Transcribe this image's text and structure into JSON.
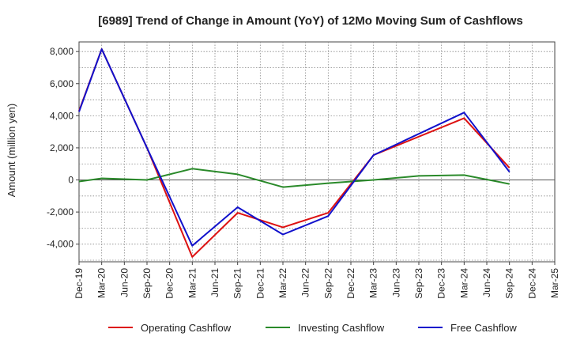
{
  "chart_data": {
    "type": "line",
    "title": "[6989]  Trend of Change in Amount (YoY) of 12Mo Moving Sum of Cashflows",
    "xlabel": "",
    "ylabel": "Amount (million yen)",
    "ylim": [
      -5100,
      8600
    ],
    "yticks": [
      -4000,
      -2000,
      0,
      2000,
      4000,
      6000,
      8000
    ],
    "ytick_labels": [
      "-4,000",
      "-2,000",
      "0",
      "2,000",
      "4,000",
      "6,000",
      "8,000"
    ],
    "categories": [
      "Dec-19",
      "Mar-20",
      "Jun-20",
      "Sep-20",
      "Dec-20",
      "Mar-21",
      "Jun-21",
      "Sep-21",
      "Dec-21",
      "Mar-22",
      "Jun-22",
      "Sep-22",
      "Dec-22",
      "Mar-23",
      "Jun-23",
      "Sep-23",
      "Dec-23",
      "Mar-24",
      "Jun-24",
      "Sep-24",
      "Dec-24",
      "Mar-25"
    ],
    "grid": true,
    "legend_position": "bottom",
    "series": [
      {
        "name": "Operating Cashflow",
        "color": "#dd1111",
        "values": [
          4300,
          8150,
          null,
          2000,
          null,
          -4800,
          null,
          -2050,
          null,
          -2950,
          null,
          -2050,
          null,
          1550,
          null,
          null,
          null,
          3850,
          null,
          750,
          null,
          null
        ]
      },
      {
        "name": "Investing Cashflow",
        "color": "#2a8a2a",
        "values": [
          -100,
          100,
          null,
          0,
          null,
          700,
          null,
          350,
          null,
          -450,
          null,
          -200,
          null,
          0,
          null,
          250,
          null,
          300,
          null,
          -250,
          null,
          null
        ]
      },
      {
        "name": "Free Cashflow",
        "color": "#1111cc",
        "values": [
          4250,
          8150,
          null,
          2000,
          null,
          -4100,
          null,
          -1700,
          null,
          -3400,
          null,
          -2250,
          null,
          1550,
          null,
          null,
          null,
          4200,
          null,
          500,
          null,
          null
        ]
      }
    ]
  }
}
